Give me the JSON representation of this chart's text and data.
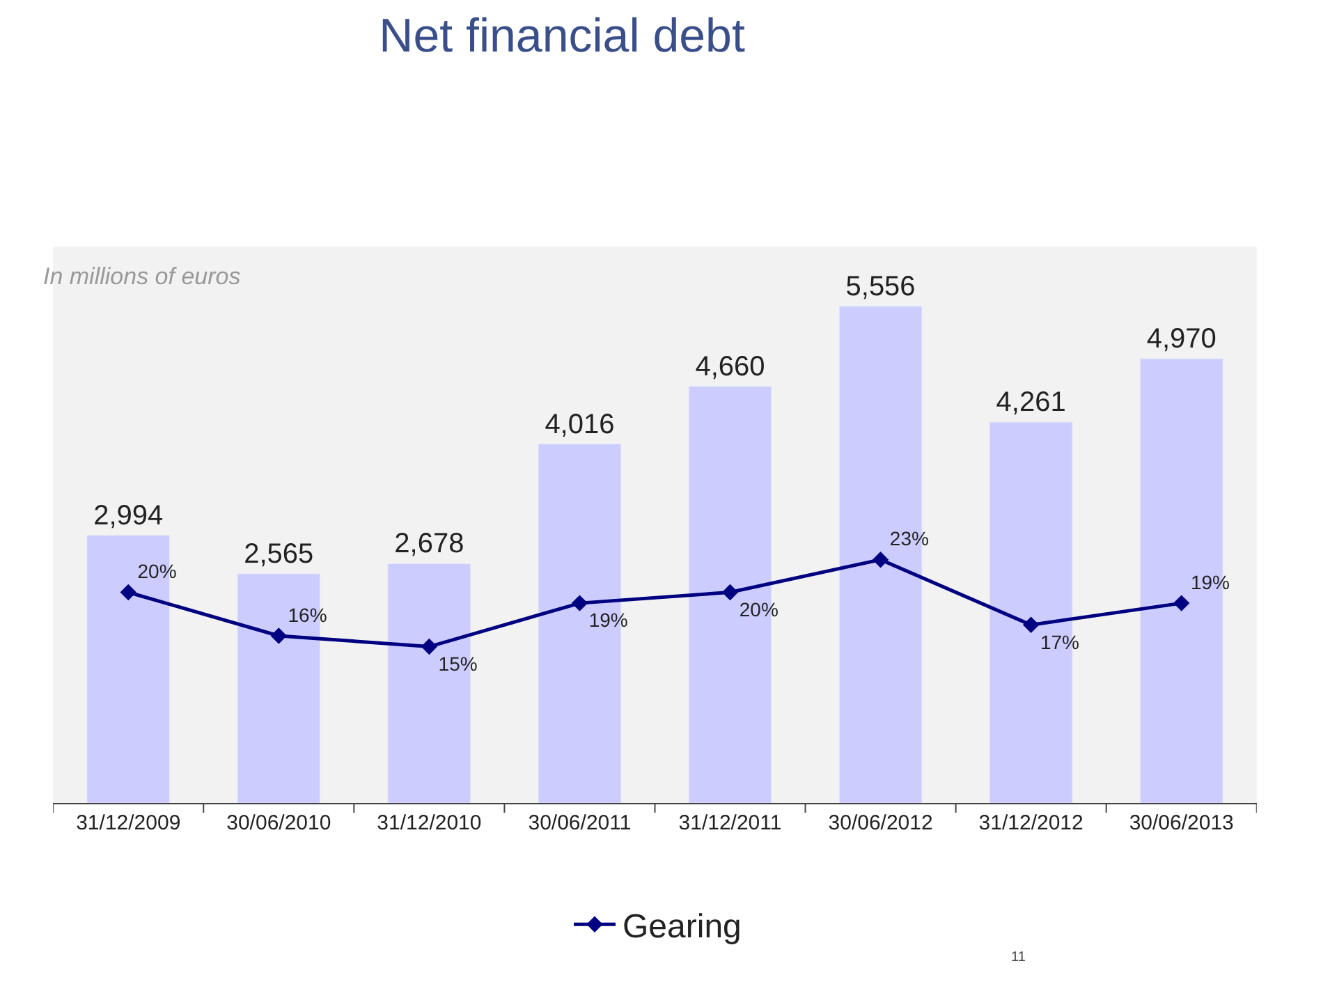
{
  "chart_data": {
    "type": "bar",
    "title": "Net financial debt",
    "subtitle": "In millions of euros",
    "categories": [
      "31/12/2009",
      "30/06/2010",
      "31/12/2010",
      "30/06/2011",
      "31/12/2011",
      "30/06/2012",
      "31/12/2012",
      "30/06/2013"
    ],
    "series": [
      {
        "color": "#ccccff",
        "values": [
          2994,
          2565,
          2678,
          4016,
          4660,
          5556,
          4261,
          4970
        ],
        "value_labels": [
          "2,994",
          "2,565",
          "2,678",
          "4,016",
          "4,660",
          "5,556",
          "4,261",
          "4,970"
        ]
      },
      {
        "type": "line",
        "name": "Gearing",
        "color": "#000080",
        "axis": "y2",
        "marker": "diamond",
        "values": [
          20,
          16,
          15,
          19,
          20,
          23,
          17,
          19
        ],
        "value_labels": [
          "20%",
          "16%",
          "15%",
          "19%",
          "20%",
          "23%",
          "17%",
          "19%"
        ]
      }
    ],
    "legend": "bottom",
    "grid": false,
    "annotations": [
      "11"
    ]
  }
}
